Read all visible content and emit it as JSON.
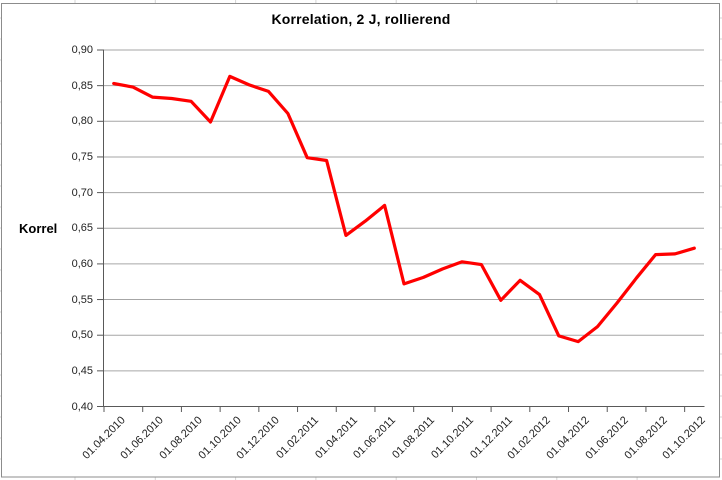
{
  "chart_data": {
    "type": "line",
    "title": "Korrelation, 2 J, rollierend",
    "ylabel": "Korrel",
    "xlabel": "",
    "grid": true,
    "legend": "none",
    "ylim": [
      0.4,
      0.9
    ],
    "y_tick_step": 0.05,
    "y_tick_labels": [
      "0,40",
      "0,45",
      "0,50",
      "0,55",
      "0,60",
      "0,65",
      "0,70",
      "0,75",
      "0,80",
      "0,85",
      "0,90"
    ],
    "x": [
      "01.04.2010",
      "01.05.2010",
      "01.06.2010",
      "01.07.2010",
      "01.08.2010",
      "01.09.2010",
      "01.10.2010",
      "01.11.2010",
      "01.12.2010",
      "01.01.2011",
      "01.02.2011",
      "01.03.2011",
      "01.04.2011",
      "01.05.2011",
      "01.06.2011",
      "01.07.2011",
      "01.08.2011",
      "01.09.2011",
      "01.10.2011",
      "01.11.2011",
      "01.12.2011",
      "01.01.2012",
      "01.02.2012",
      "01.03.2012",
      "01.04.2012",
      "01.05.2012",
      "01.06.2012",
      "01.07.2012",
      "01.08.2012",
      "01.09.2012",
      "01.10.2012"
    ],
    "x_tick_labels": [
      "01.04.2010",
      "01.06.2010",
      "01.08.2010",
      "01.10.2010",
      "01.12.2010",
      "01.02.2011",
      "01.04.2011",
      "01.06.2011",
      "01.08.2011",
      "01.10.2011",
      "01.12.2011",
      "01.02.2012",
      "01.04.2012",
      "01.06.2012",
      "01.08.2012",
      "01.10.2012"
    ],
    "values": [
      0.853,
      0.848,
      0.834,
      0.832,
      0.828,
      0.799,
      0.863,
      0.851,
      0.842,
      0.811,
      0.749,
      0.745,
      0.64,
      0.66,
      0.682,
      0.572,
      0.581,
      0.593,
      0.603,
      0.599,
      0.549,
      0.577,
      0.557,
      0.499,
      0.491,
      0.512,
      0.545,
      0.58,
      0.613,
      0.614,
      0.622
    ]
  },
  "colors": {
    "series": "#ff0000",
    "gridline": "#a6a6a6",
    "axis": "#595959",
    "chart_border": "#8c8c8c",
    "worksheet_grid": "#d4d4d4",
    "text": "#1f1f1f"
  }
}
